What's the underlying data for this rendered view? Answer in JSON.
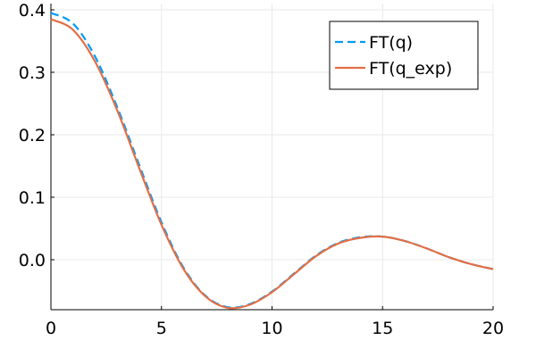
{
  "chart_data": {
    "type": "line",
    "title": "",
    "xlabel": "",
    "ylabel": "",
    "xlim": [
      0,
      20
    ],
    "ylim": [
      -0.08,
      0.41
    ],
    "x_ticks": [
      0,
      5,
      10,
      15,
      20
    ],
    "x_tick_labels": [
      "0",
      "5",
      "10",
      "15",
      "20"
    ],
    "y_ticks": [
      0.0,
      0.1,
      0.2,
      0.3,
      0.4
    ],
    "y_tick_labels": [
      "0.0",
      "0.1",
      "0.2",
      "0.3",
      "0.4"
    ],
    "grid": true,
    "legend_position": "top-right",
    "x": [
      0,
      1,
      2,
      3,
      4,
      5,
      6,
      7,
      8,
      9,
      10,
      11,
      12,
      13,
      14,
      15,
      16,
      17,
      18,
      19,
      20
    ],
    "series": [
      {
        "name": "FT(q)",
        "color": "#009AF9",
        "dash": "dashed",
        "values": [
          0.395,
          0.378,
          0.325,
          0.244,
          0.151,
          0.06,
          -0.013,
          -0.058,
          -0.076,
          -0.071,
          -0.051,
          -0.022,
          0.007,
          0.027,
          0.036,
          0.037,
          0.03,
          0.018,
          0.004,
          -0.007,
          -0.015
        ]
      },
      {
        "name": "FT(q_exp)",
        "color": "#E26F46",
        "dash": "solid",
        "values": [
          0.385,
          0.368,
          0.317,
          0.239,
          0.146,
          0.056,
          -0.015,
          -0.059,
          -0.077,
          -0.072,
          -0.052,
          -0.023,
          0.006,
          0.026,
          0.035,
          0.037,
          0.03,
          0.018,
          0.004,
          -0.007,
          -0.015
        ]
      }
    ]
  }
}
